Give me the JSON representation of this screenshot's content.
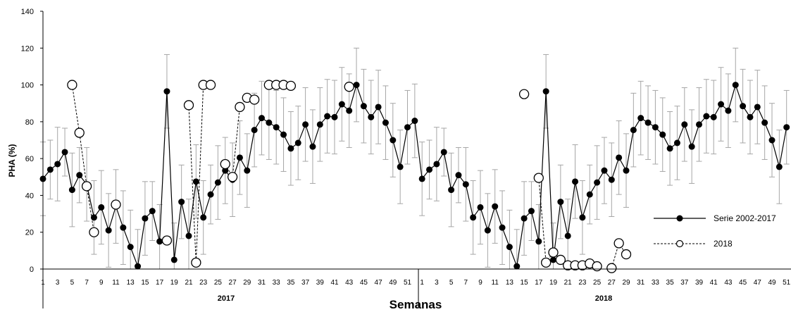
{
  "chart_data": {
    "type": "line",
    "ylabel": "PHA (%)",
    "xlabel": "Semanas",
    "ylim": [
      0,
      140
    ],
    "y_ticks": [
      0,
      20,
      40,
      60,
      80,
      100,
      120,
      140
    ],
    "x_tick_labels": [
      "1",
      "3",
      "5",
      "7",
      "9",
      "11",
      "13",
      "15",
      "17",
      "19",
      "21",
      "23",
      "25",
      "27",
      "29",
      "31",
      "33",
      "35",
      "37",
      "39",
      "41",
      "43",
      "45",
      "47",
      "49",
      "51"
    ],
    "year_labels": [
      "2017",
      "2018"
    ],
    "grid": false,
    "legend_position": "right",
    "series": [
      {
        "name": "Serie 2002-2017",
        "marker": "filled-circle",
        "line": "solid",
        "color": "#000000",
        "error_bar_color": "#a6a6a6",
        "values": [
          49,
          54,
          57,
          63.5,
          43,
          51,
          46,
          28,
          33.5,
          21,
          34,
          22.5,
          12,
          1.5,
          27.5,
          31.5,
          15,
          96.5,
          5,
          36.5,
          18,
          47.5,
          28,
          40.5,
          47,
          53.5,
          48.5,
          60.5,
          53.5,
          75.5,
          82,
          79.5,
          77,
          73,
          65.5,
          68.5,
          78.5,
          66.5,
          78.5,
          83,
          82.5,
          89.5,
          86,
          100,
          88.5,
          82.5,
          88,
          79.5,
          70,
          55.5,
          77,
          80.5
        ],
        "error": [
          20,
          16,
          20,
          13,
          20,
          15,
          20,
          20,
          20,
          20,
          20,
          20,
          20,
          20,
          20,
          16,
          20,
          20,
          20,
          20,
          20,
          20,
          20,
          16,
          20,
          18,
          20,
          20,
          20,
          20,
          20,
          20,
          20,
          20,
          20,
          20,
          20,
          20,
          20,
          20,
          20,
          20,
          20,
          20,
          20,
          20,
          20,
          20,
          20,
          20,
          20,
          20
        ]
      },
      {
        "name": "2018",
        "marker": "open-circle",
        "line": "dashed",
        "color": "#000000",
        "segments": [
          [
            [
              4,
              100
            ],
            [
              5,
              74
            ],
            [
              6,
              45
            ],
            [
              7,
              20
            ]
          ],
          [
            [
              10,
              35
            ]
          ],
          [
            [
              17,
              15.5
            ]
          ],
          [
            [
              20,
              89
            ],
            [
              21,
              3.5
            ],
            [
              22,
              100
            ],
            [
              23,
              100
            ]
          ],
          [
            [
              25,
              57
            ],
            [
              26,
              50
            ],
            [
              27,
              88
            ],
            [
              28,
              93
            ],
            [
              29,
              92
            ]
          ],
          [
            [
              31,
              100
            ],
            [
              32,
              100
            ],
            [
              33,
              100
            ],
            [
              34,
              99.5
            ]
          ],
          [
            [
              42,
              99
            ]
          ],
          [
            [
              66,
              95
            ]
          ],
          [
            [
              68,
              49.5
            ],
            [
              69,
              3.5
            ],
            [
              70,
              9
            ],
            [
              71,
              5
            ],
            [
              72,
              2
            ],
            [
              73,
              2
            ],
            [
              74,
              2
            ],
            [
              75,
              3
            ],
            [
              76,
              1.5
            ]
          ],
          [
            [
              78,
              0.5
            ],
            [
              79,
              14
            ],
            [
              80,
              8
            ]
          ]
        ]
      }
    ]
  }
}
